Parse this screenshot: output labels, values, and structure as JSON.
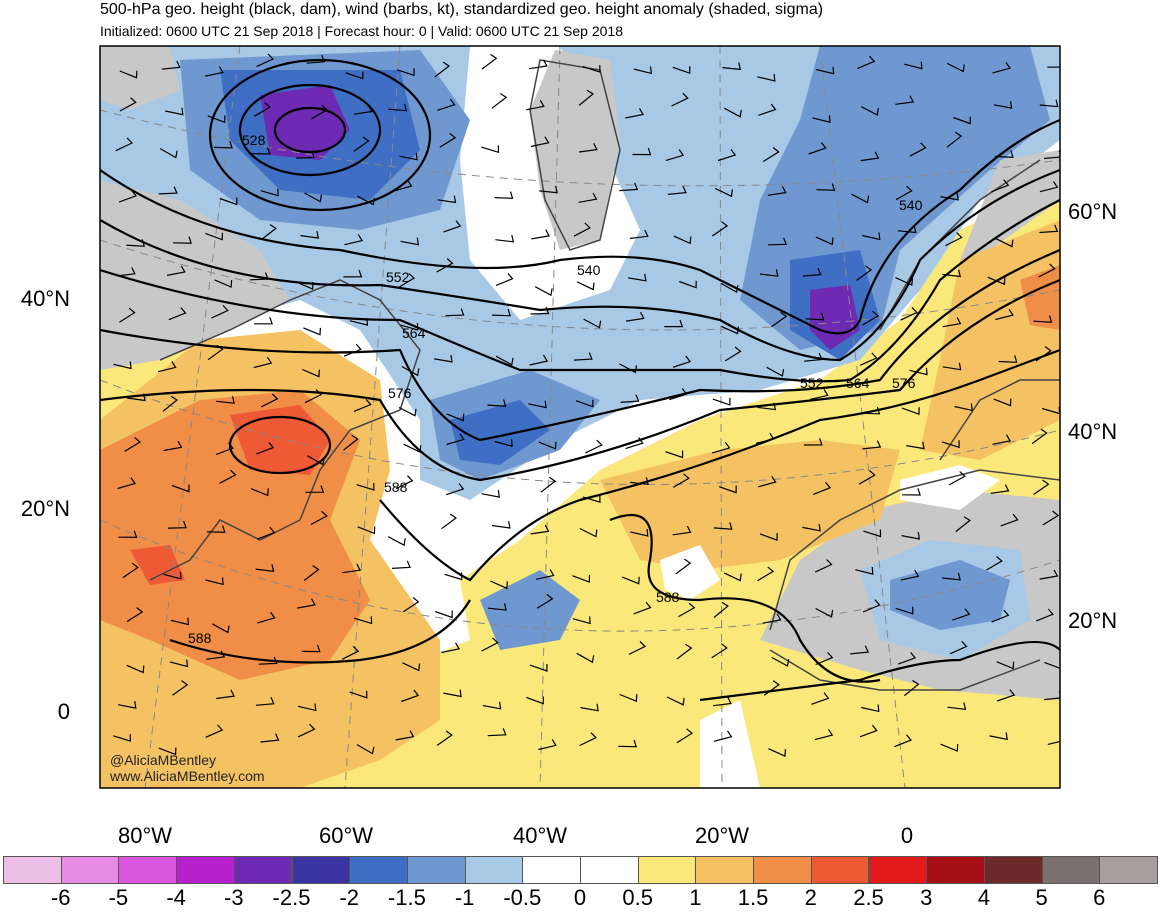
{
  "title": "500-hPa geo. height (black, dam), wind (barbs, kt), standardized geo. height anomaly (shaded, sigma)",
  "subtitle": "Initialized: 0600 UTC 21 Sep 2018 | Forecast hour: 0 | Valid: 0600 UTC 21 Sep 2018",
  "credits": [
    "@AliciaMBentley",
    "www.AliciaMBentley.com"
  ],
  "lat_labels_left": [
    "40°N",
    "20°N",
    "0"
  ],
  "lat_labels_right": [
    "60°N",
    "40°N",
    "20°N"
  ],
  "lon_labels": [
    "80°W",
    "60°W",
    "40°W",
    "20°W",
    "0"
  ],
  "contour_labels": [
    "528",
    "552",
    "540",
    "564",
    "576",
    "588",
    "588",
    "588",
    "540",
    "552",
    "564",
    "576"
  ],
  "colorbar": {
    "colors": [
      "#ecbde6",
      "#e68ae3",
      "#d957de",
      "#b820cf",
      "#6f2ab3",
      "#3b35a4",
      "#3f6fc4",
      "#6f98d1",
      "#a8c9e6",
      "#ffffff",
      "#ffffff",
      "#fbe87a",
      "#f4c262",
      "#f08e48",
      "#ee5a35",
      "#e31a1c",
      "#a50f15",
      "#6e2a2a",
      "#7a7070",
      "#a89e9e"
    ],
    "ticks": [
      "-6",
      "-5",
      "-4",
      "-3",
      "-2.5",
      "-2",
      "-1.5",
      "-1",
      "-0.5",
      "0",
      "0.5",
      "1",
      "1.5",
      "2",
      "2.5",
      "3",
      "4",
      "5",
      "6"
    ]
  }
}
